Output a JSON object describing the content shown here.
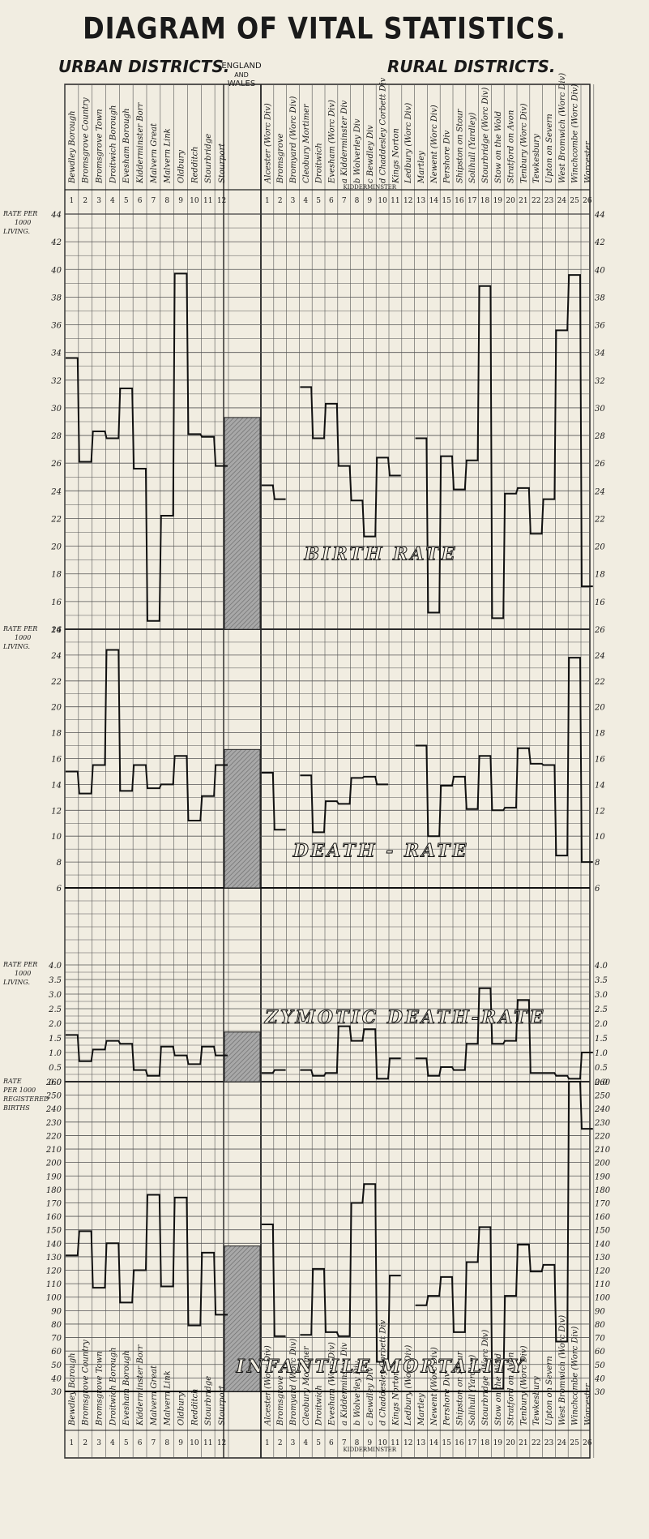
{
  "title": "DIAGRAM OF VITAL STATISTICS.",
  "urban_header": "URBAN DISTRICTS.",
  "rural_header": "RURAL DISTRICTS.",
  "england_wales": [
    "ENGLAND",
    "AND",
    "WALES"
  ],
  "kidderminster": "KIDDERMINSTER",
  "chart_data": {
    "type": "line",
    "urban_districts": [
      "Bewdley Borough",
      "Bromsgrove Country",
      "Bromsgrove Town",
      "Droitwich Borough",
      "Evesham Borough",
      "Kidderminster Borr",
      "Malvern Great",
      "Malvern Link",
      "Oldbury",
      "Redditch",
      "Stourbridge",
      "Stourport"
    ],
    "rural_districts": [
      "Alcester (Worc Div)",
      "Bromsgrove",
      "Bromyard (Worc Div)",
      "Cleobury Mortimer",
      "Droitwich",
      "Evesham (Worc Div)",
      "a Kidderminster Div",
      "b Wolverley Div",
      "c Bewdley Div",
      "d Chaddesley Corbett Div",
      "Kings Norton",
      "Ledbury (Worc Div)",
      "Martley",
      "Newent (Worc Div)",
      "Pershore Div",
      "Shipston on Stour",
      "Solihull (Yardley)",
      "Stourbridge (Worc Div)",
      "Stow on the Wold",
      "Stratford on Avon",
      "Tenbury (Worc Div)",
      "Tewkesbury",
      "Upton on Severn",
      "West Bromwich (Worc Div)",
      "Winchcombe (Worc Div)",
      "Worcester"
    ],
    "panels": [
      {
        "name": "BIRTH RATE",
        "ylabel": "RATE PER 1000 LIVING",
        "ylim": [
          14,
          44
        ],
        "ticks_left": [
          44,
          42,
          40,
          38,
          36,
          34,
          32,
          30,
          28,
          26,
          24,
          22,
          20,
          18,
          16,
          14
        ],
        "ticks_right": [
          44,
          42,
          40,
          38,
          36,
          34,
          32,
          30,
          28,
          26,
          24,
          22,
          20,
          18,
          16
        ],
        "england_wales": 29.3,
        "urban": [
          33.6,
          26.1,
          28.3,
          27.8,
          31.4,
          25.6,
          14.6,
          22.2,
          39.7,
          28.1,
          27.9,
          25.8
        ],
        "rural": [
          24.4,
          23.4,
          null,
          31.5,
          27.8,
          30.3,
          25.8,
          23.3,
          20.7,
          26.4,
          25.1,
          null,
          27.8,
          15.2,
          26.5,
          24.1,
          26.2,
          38.8,
          14.8,
          23.8,
          24.2,
          20.9,
          23.4,
          35.6,
          39.6,
          17.1
        ]
      },
      {
        "name": "DEATH - RATE",
        "ylabel": "RATE PER 1000 LIVING",
        "ylim": [
          6,
          26
        ],
        "ticks_left": [
          26,
          24,
          22,
          20,
          18,
          16,
          14,
          12,
          10,
          8,
          6
        ],
        "ticks_right": [
          26,
          24,
          22,
          20,
          18,
          16,
          14,
          12,
          10,
          8,
          6
        ],
        "england_wales": 16.7,
        "urban": [
          15.0,
          13.3,
          15.5,
          24.4,
          13.5,
          15.5,
          13.7,
          14.0,
          16.2,
          11.2,
          13.1,
          15.5
        ],
        "rural": [
          14.9,
          10.5,
          null,
          14.7,
          10.3,
          12.7,
          12.5,
          14.5,
          14.6,
          14.0,
          null,
          null,
          17.0,
          10.0,
          13.9,
          14.6,
          12.1,
          16.2,
          12.0,
          12.2,
          16.8,
          15.6,
          15.5,
          8.5,
          23.8,
          8.0
        ]
      },
      {
        "name": "ZYMOTIC DEATH-RATE",
        "ylabel": "RATE PER 1000 LIVING",
        "ylim": [
          0,
          4.0
        ],
        "ticks_left": [
          4.0,
          3.5,
          3.0,
          2.5,
          2.0,
          1.5,
          1.0,
          0.5,
          0.0
        ],
        "ticks_right": [
          4.0,
          3.5,
          3.0,
          2.5,
          2.0,
          1.5,
          1.0,
          0.5,
          0.0
        ],
        "england_wales": 1.7,
        "urban": [
          1.6,
          0.7,
          1.1,
          1.4,
          1.3,
          0.4,
          0.2,
          1.2,
          0.9,
          0.6,
          1.2,
          0.9
        ],
        "rural": [
          0.3,
          0.4,
          null,
          0.4,
          0.2,
          0.3,
          1.9,
          1.4,
          1.8,
          0.1,
          0.8,
          null,
          0.8,
          0.2,
          0.5,
          0.4,
          1.3,
          3.2,
          1.3,
          1.4,
          2.8,
          0.3,
          0.3,
          0.2,
          0.1,
          1.0
        ]
      },
      {
        "name": "INFANTILE MORTALITY",
        "ylabel": "RATE PER 1000 REGISTERED BIRTHS",
        "ylim": [
          30,
          260
        ],
        "ticks_left": [
          260,
          250,
          240,
          230,
          220,
          210,
          200,
          190,
          180,
          170,
          160,
          150,
          140,
          130,
          120,
          110,
          100,
          90,
          80,
          70,
          60,
          50,
          40,
          30
        ],
        "ticks_right": [
          260,
          250,
          240,
          230,
          220,
          210,
          200,
          190,
          180,
          170,
          160,
          150,
          140,
          130,
          120,
          110,
          100,
          90,
          80,
          70,
          60,
          50,
          40,
          30
        ],
        "england_wales": 138,
        "urban": [
          131,
          149,
          107,
          140,
          96,
          120,
          176,
          108,
          174,
          79,
          133,
          87
        ],
        "rural": [
          154,
          71,
          null,
          72,
          121,
          74,
          71,
          170,
          184,
          52,
          116,
          null,
          94,
          101,
          115,
          74,
          126,
          152,
          32,
          101,
          139,
          119,
          124,
          67,
          260,
          225
        ]
      }
    ]
  }
}
